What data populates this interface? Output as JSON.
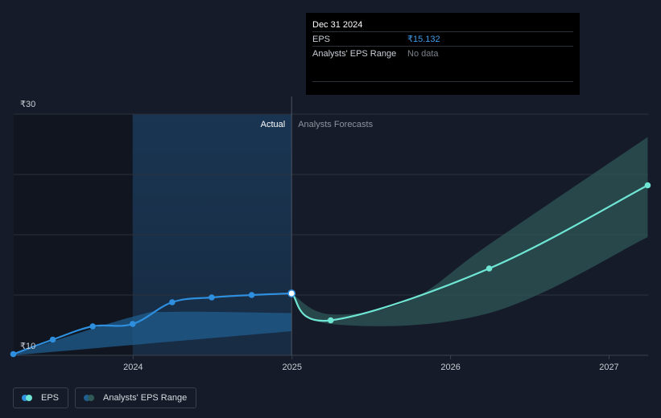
{
  "tooltip": {
    "date": "Dec 31 2024",
    "rows": [
      {
        "label": "EPS",
        "value": "₹15.132"
      },
      {
        "label": "Analysts' EPS Range",
        "value": "No data"
      }
    ]
  },
  "legend": [
    {
      "label": "EPS",
      "icon": "eps-dots-icon"
    },
    {
      "label": "Analysts' EPS Range",
      "icon": "range-dots-icon"
    }
  ],
  "colors": {
    "background": "#151b28",
    "actual_line": "#2e8fde",
    "forecast_line": "#6fe5d3",
    "range_actual": "#1f5e8f",
    "range_forecast": "#2f5a58"
  },
  "chart_data": {
    "type": "line",
    "xlim": [
      "2023-04-01",
      "2027-04-01"
    ],
    "ylim": [
      10,
      30
    ],
    "y_ticks": [
      {
        "value": 10,
        "label": "₹10"
      },
      {
        "value": 30,
        "label": "₹30"
      }
    ],
    "x_ticks": [
      {
        "value": "2024-01-01",
        "label": "2024"
      },
      {
        "value": "2025-01-01",
        "label": "2025"
      },
      {
        "value": "2026-01-01",
        "label": "2026"
      },
      {
        "value": "2027-01-01",
        "label": "2027"
      }
    ],
    "grid": true,
    "divider": "2024-12-31",
    "sections": {
      "actual": "Actual",
      "forecast": "Analysts Forecasts"
    },
    "highlight_x": "2023-12-31",
    "legend_position": "bottom-left",
    "series": [
      {
        "name": "EPS",
        "role": "actual",
        "points": [
          {
            "x": "2023-03-31",
            "y": 10.1
          },
          {
            "x": "2023-06-30",
            "y": 11.3
          },
          {
            "x": "2023-09-30",
            "y": 12.4
          },
          {
            "x": "2023-12-31",
            "y": 12.6
          },
          {
            "x": "2024-03-31",
            "y": 14.4
          },
          {
            "x": "2024-06-30",
            "y": 14.8
          },
          {
            "x": "2024-09-30",
            "y": 15.0
          },
          {
            "x": "2024-12-31",
            "y": 15.132
          }
        ]
      },
      {
        "name": "EPS",
        "role": "forecast",
        "points": [
          {
            "x": "2024-12-31",
            "y": 15.132
          },
          {
            "x": "2025-03-31",
            "y": 12.9
          },
          {
            "x": "2026-03-31",
            "y": 17.2
          },
          {
            "x": "2027-03-31",
            "y": 24.1
          }
        ]
      }
    ],
    "ranges": [
      {
        "name": "Analysts' EPS Range",
        "role": "actual",
        "upper": [
          {
            "x": "2023-03-31",
            "y": 10.1
          },
          {
            "x": "2023-12-31",
            "y": 13.2
          },
          {
            "x": "2024-03-31",
            "y": 13.6
          },
          {
            "x": "2024-12-31",
            "y": 13.5
          }
        ],
        "lower": [
          {
            "x": "2023-03-31",
            "y": 10.0
          },
          {
            "x": "2024-12-31",
            "y": 12.0
          }
        ]
      },
      {
        "name": "Analysts' EPS Range",
        "role": "forecast",
        "upper": [
          {
            "x": "2024-12-31",
            "y": 15.132
          },
          {
            "x": "2025-03-31",
            "y": 13.4
          },
          {
            "x": "2025-09-30",
            "y": 14.6
          },
          {
            "x": "2026-03-31",
            "y": 19.2
          },
          {
            "x": "2027-03-31",
            "y": 28.1
          }
        ],
        "lower": [
          {
            "x": "2024-12-31",
            "y": 15.132
          },
          {
            "x": "2025-03-31",
            "y": 12.6
          },
          {
            "x": "2026-03-31",
            "y": 13.5
          },
          {
            "x": "2027-03-31",
            "y": 19.8
          }
        ]
      }
    ]
  }
}
